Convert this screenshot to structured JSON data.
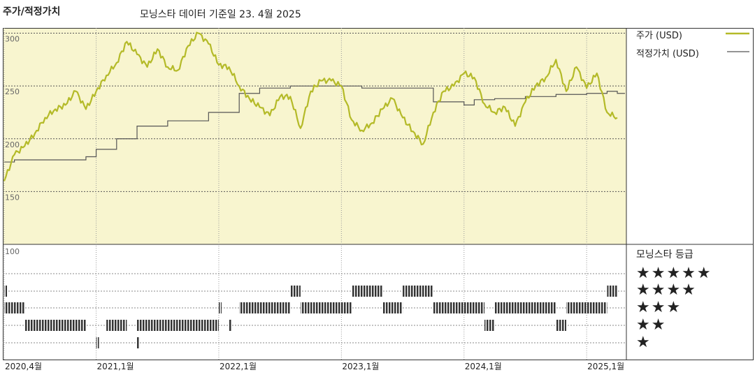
{
  "header": {
    "title": "주가/적정가치",
    "subtitle": "모닝스타 데이터 기준일 23. 4월 2025"
  },
  "legend": {
    "price": "주가 (USD)",
    "fair_value": "적정가치 (USD)",
    "rating_title": "모닝스타 등급",
    "star_rows": [
      "★★★★★",
      "★★★★",
      "★★★",
      "★★",
      "★"
    ]
  },
  "colors": {
    "price": "#b4ba28",
    "fair_value": "#555555",
    "plot_bg": "#f8f5cf",
    "rating_bar": "#333333"
  },
  "chart_data": {
    "type": "line",
    "y_ticks": [
      "300",
      "250",
      "200",
      "150"
    ],
    "ylim": [
      100,
      305
    ],
    "lower_panel_label": "100",
    "x_ticks": [
      "2020,4월",
      "2021,1월",
      "2022,1월",
      "2023,1월",
      "2024,1월",
      "2025,1월"
    ],
    "x_tick_positions": [
      "2020-04",
      "2021-01",
      "2022-01",
      "2023-01",
      "2024-01",
      "2025-01"
    ],
    "series": [
      {
        "name": "주가 (USD)",
        "x": [
          "2020-04",
          "2020-05",
          "2020-06",
          "2020-07",
          "2020-08",
          "2020-09",
          "2020-10",
          "2020-11",
          "2020-12",
          "2021-01",
          "2021-02",
          "2021-03",
          "2021-04",
          "2021-05",
          "2021-06",
          "2021-07",
          "2021-08",
          "2021-09",
          "2021-10",
          "2021-11",
          "2021-12",
          "2022-01",
          "2022-02",
          "2022-03",
          "2022-04",
          "2022-05",
          "2022-06",
          "2022-07",
          "2022-08",
          "2022-09",
          "2022-10",
          "2022-11",
          "2022-12",
          "2023-01",
          "2023-02",
          "2023-03",
          "2023-04",
          "2023-05",
          "2023-06",
          "2023-07",
          "2023-08",
          "2023-09",
          "2023-10",
          "2023-11",
          "2023-12",
          "2024-01",
          "2024-02",
          "2024-03",
          "2024-04",
          "2024-05",
          "2024-06",
          "2024-07",
          "2024-08",
          "2024-09",
          "2024-10",
          "2024-11",
          "2024-12",
          "2025-01",
          "2025-02",
          "2025-03",
          "2025-04"
        ],
        "values": [
          160,
          185,
          193,
          205,
          220,
          228,
          232,
          245,
          228,
          245,
          260,
          272,
          292,
          280,
          268,
          285,
          268,
          265,
          288,
          300,
          290,
          270,
          268,
          250,
          238,
          230,
          222,
          240,
          240,
          210,
          245,
          255,
          255,
          250,
          218,
          208,
          215,
          228,
          238,
          220,
          207,
          195,
          225,
          245,
          250,
          262,
          258,
          233,
          225,
          230,
          212,
          235,
          250,
          258,
          275,
          245,
          268,
          248,
          262,
          225,
          220
        ]
      },
      {
        "name": "적정가치 (USD)",
        "x": [
          "2020-04",
          "2020-05",
          "2020-12",
          "2021-01",
          "2021-03",
          "2021-05",
          "2021-08",
          "2021-12",
          "2022-03",
          "2022-05",
          "2022-08",
          "2022-11",
          "2023-01",
          "2023-03",
          "2023-10",
          "2024-01",
          "2024-02",
          "2024-04",
          "2024-07",
          "2024-10",
          "2025-01",
          "2025-03",
          "2025-04"
        ],
        "values": [
          178,
          180,
          183,
          190,
          200,
          212,
          217,
          225,
          243,
          248,
          250,
          250,
          250,
          248,
          235,
          232,
          237,
          238,
          240,
          242,
          243,
          245,
          243
        ]
      }
    ],
    "rating_bands": [
      {
        "start": "2020-04",
        "end": "2020-04",
        "stars": 4
      },
      {
        "start": "2020-04",
        "end": "2020-06",
        "stars": 3
      },
      {
        "start": "2020-06",
        "end": "2020-12",
        "stars": 2
      },
      {
        "start": "2021-01",
        "end": "2021-01",
        "stars": 1
      },
      {
        "start": "2021-02",
        "end": "2021-04",
        "stars": 2
      },
      {
        "start": "2021-05",
        "end": "2021-05",
        "stars": 1
      },
      {
        "start": "2021-05",
        "end": "2022-01",
        "stars": 2
      },
      {
        "start": "2022-01",
        "end": "2022-01",
        "stars": 3
      },
      {
        "start": "2022-02",
        "end": "2022-02",
        "stars": 2
      },
      {
        "start": "2022-03",
        "end": "2022-08",
        "stars": 3
      },
      {
        "start": "2022-08",
        "end": "2022-09",
        "stars": 4
      },
      {
        "start": "2022-09",
        "end": "2022-11",
        "stars": 3
      },
      {
        "start": "2022-11",
        "end": "2023-02",
        "stars": 3
      },
      {
        "start": "2023-02",
        "end": "2023-05",
        "stars": 4
      },
      {
        "start": "2023-05",
        "end": "2023-07",
        "stars": 3
      },
      {
        "start": "2023-07",
        "end": "2023-10",
        "stars": 4
      },
      {
        "start": "2023-10",
        "end": "2024-03",
        "stars": 3
      },
      {
        "start": "2024-03",
        "end": "2024-04",
        "stars": 2
      },
      {
        "start": "2024-04",
        "end": "2024-10",
        "stars": 3
      },
      {
        "start": "2024-10",
        "end": "2024-11",
        "stars": 2
      },
      {
        "start": "2024-11",
        "end": "2025-03",
        "stars": 3
      },
      {
        "start": "2025-03",
        "end": "2025-04",
        "stars": 4
      }
    ]
  }
}
